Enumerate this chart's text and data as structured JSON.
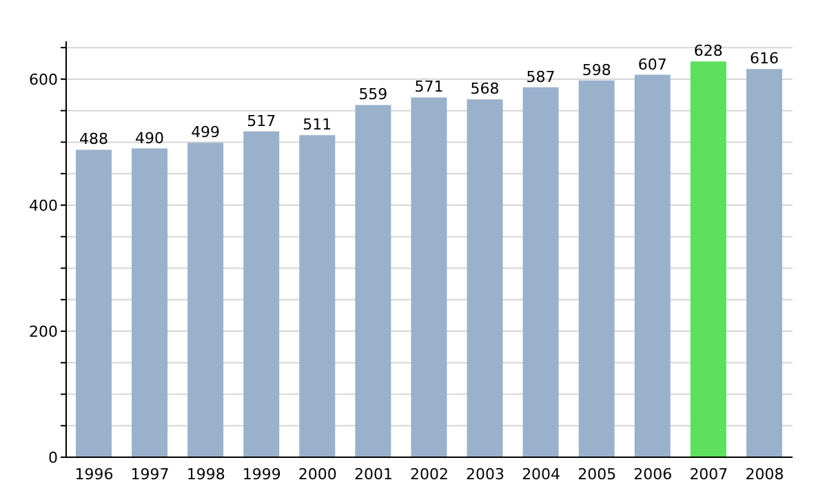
{
  "chart_data": {
    "type": "bar",
    "categories": [
      "1996",
      "1997",
      "1998",
      "1999",
      "2000",
      "2001",
      "2002",
      "2003",
      "2004",
      "2005",
      "2006",
      "2007",
      "2008"
    ],
    "values": [
      488,
      490,
      499,
      517,
      511,
      559,
      571,
      568,
      587,
      598,
      607,
      628,
      616
    ],
    "colors": [
      "#9ab1cb",
      "#9ab1cb",
      "#9ab1cb",
      "#9ab1cb",
      "#9ab1cb",
      "#9ab1cb",
      "#9ab1cb",
      "#9ab1cb",
      "#9ab1cb",
      "#9ab1cb",
      "#9ab1cb",
      "#5ee05e",
      "#9ab1cb"
    ],
    "ylim": [
      0,
      660
    ],
    "yticks": [
      0,
      {
        "value": 50,
        "label": null
      },
      {
        "value": 100,
        "label": null
      },
      {
        "value": 150,
        "label": null
      },
      200,
      {
        "value": 250,
        "label": null
      },
      {
        "value": 300,
        "label": null
      },
      {
        "value": 350,
        "label": null
      },
      400,
      {
        "value": 450,
        "label": null
      },
      {
        "value": 500,
        "label": null
      },
      {
        "value": 550,
        "label": null
      },
      600,
      {
        "value": 650,
        "label": null
      }
    ],
    "grid": "y",
    "data_labels": true
  }
}
